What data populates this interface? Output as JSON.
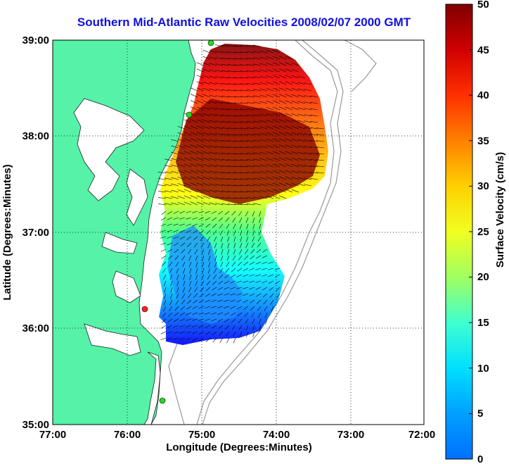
{
  "title": "Southern Mid-Atlantic Raw Velocities 2008/02/07 2000 GMT",
  "x_axis": {
    "label": "Longitude (Degrees:Minutes)",
    "ticks": [
      "77:00",
      "76:00",
      "75:00",
      "74:00",
      "73:00",
      "72:00"
    ]
  },
  "y_axis": {
    "label": "Latitude (Degrees:Minutes)",
    "ticks": [
      "39:00",
      "38:00",
      "37:00",
      "36:00",
      "35:00"
    ]
  },
  "colorbar": {
    "label": "Surface Velocity (cm/s)",
    "ticks": [
      "50",
      "45",
      "40",
      "35",
      "30",
      "25",
      "20",
      "15",
      "10",
      "5",
      "0"
    ],
    "min": 0,
    "max": 50,
    "colormap": "jet"
  },
  "colors": {
    "land": "#55f2a8",
    "title": "#1010e0",
    "bathymetry": "#999999",
    "station": "#22dd22",
    "station_alert": "#ff2222"
  },
  "chart_data": {
    "type": "heatmap",
    "title": "Southern Mid-Atlantic Raw Velocities 2008/02/07 2000 GMT",
    "xlabel": "Longitude (Degrees:Minutes)",
    "ylabel": "Latitude (Degrees:Minutes)",
    "xlim": [
      -77,
      -72
    ],
    "ylim": [
      35,
      39
    ],
    "grid": true,
    "colorbar_label": "Surface Velocity (cm/s)",
    "colorbar_range": [
      0,
      50
    ],
    "stations": [
      {
        "lon": -74.9,
        "lat": 38.98,
        "color": "green"
      },
      {
        "lon": -75.15,
        "lat": 38.22,
        "color": "green"
      },
      {
        "lon": -75.75,
        "lat": 36.18,
        "color": "red"
      },
      {
        "lon": -75.55,
        "lat": 35.25,
        "color": "green"
      }
    ]
  }
}
